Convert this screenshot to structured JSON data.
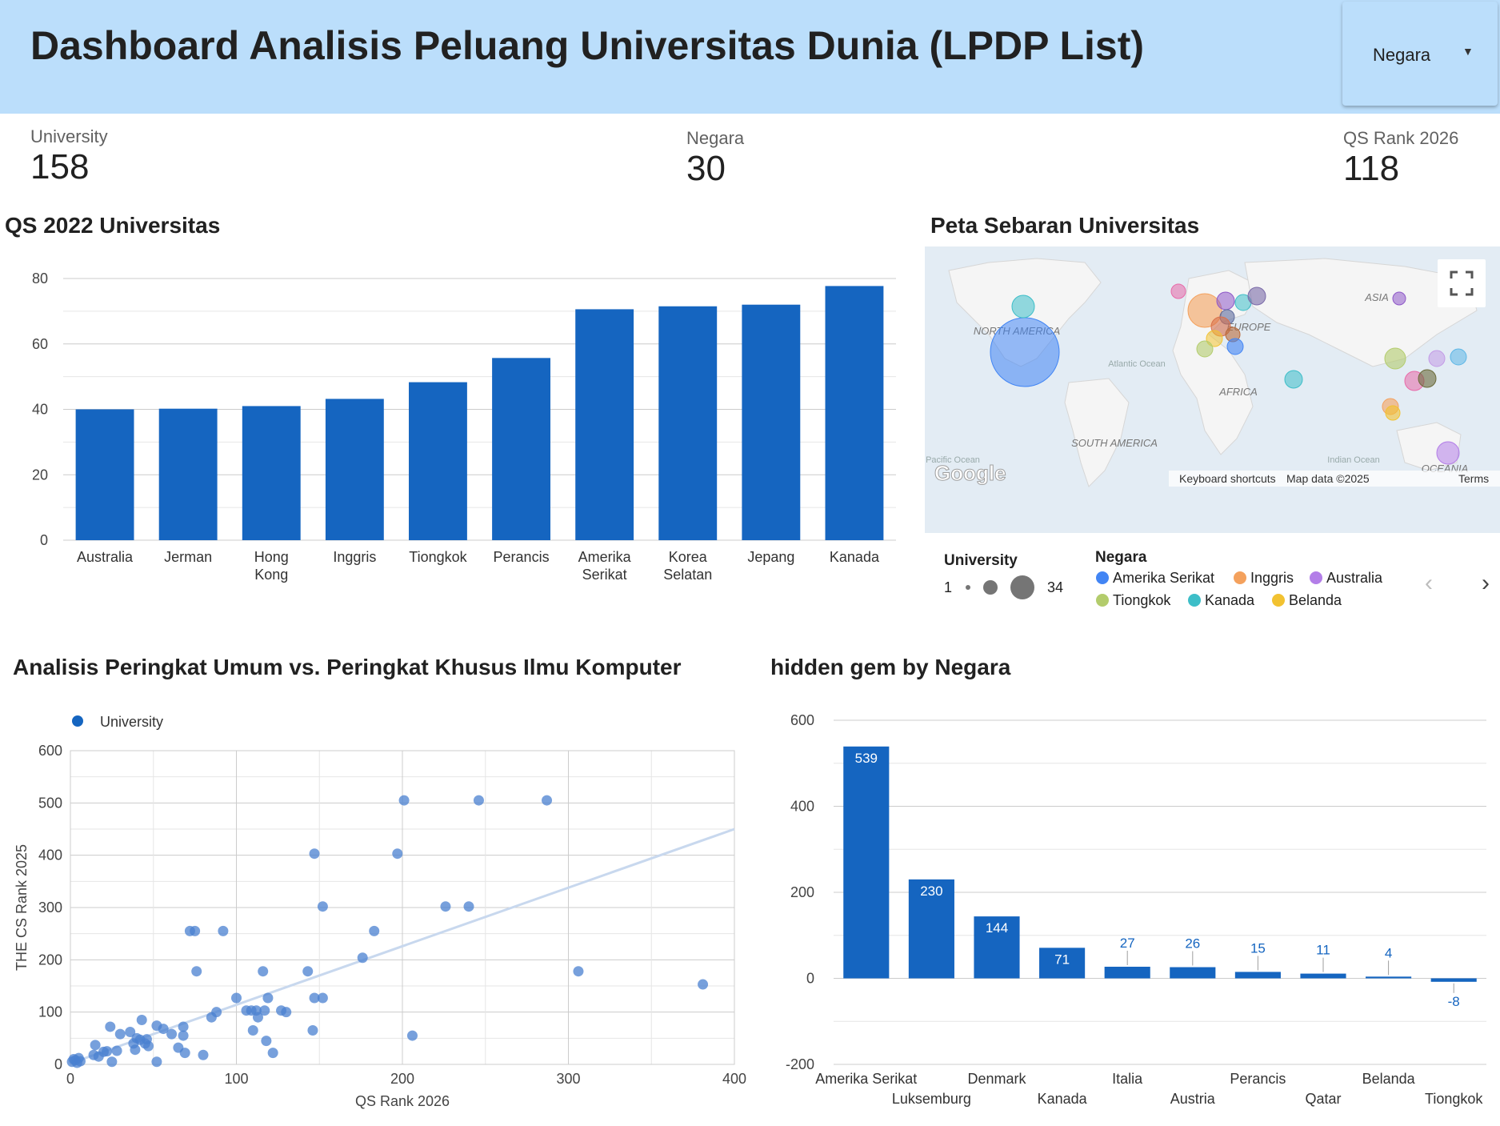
{
  "header": {
    "title": "Dashboard Analisis Peluang Universitas Dunia (LPDP List)"
  },
  "filter": {
    "label": "Negara"
  },
  "kpis": [
    {
      "label": "University",
      "value": "158"
    },
    {
      "label": "Negara",
      "value": "30"
    },
    {
      "label": "QS Rank 2026",
      "value": "118"
    }
  ],
  "bar_title": "QS 2022 Universitas",
  "map_title": "Peta Sebaran Universitas",
  "scatter_title": "Analisis Peringkat Umum vs. Peringkat Khusus Ilmu Komputer",
  "gem_title": "hidden gem by Negara",
  "map": {
    "continents": [
      "NORTH AMERICA",
      "EUROPE",
      "ASIA",
      "AFRICA",
      "SOUTH AMERICA",
      "OCEANIA"
    ],
    "oceans": [
      "Atlantic Ocean",
      "Pacific Ocean",
      "Indian Ocean"
    ],
    "logo": "Google",
    "attrib": [
      "Keyboard shortcuts",
      "Map data ©2025",
      "Terms"
    ],
    "legend_size_title": "University",
    "legend_size_min": "1",
    "legend_size_max": "34",
    "legend_color_title": "Negara",
    "legend_items": [
      {
        "name": "Amerika Serikat",
        "color": "#4285f4"
      },
      {
        "name": "Inggris",
        "color": "#f4a15d"
      },
      {
        "name": "Australia",
        "color": "#b37ee8"
      },
      {
        "name": "Tiongkok",
        "color": "#b3cc6c"
      },
      {
        "name": "Kanada",
        "color": "#3dbec8"
      },
      {
        "name": "Belanda",
        "color": "#f2c231"
      }
    ]
  },
  "chart_data": [
    {
      "type": "bar",
      "title": "QS 2022 Universitas",
      "categories": [
        "Australia",
        "Jerman",
        "Hong Kong",
        "Inggris",
        "Tiongkok",
        "Perancis",
        "Amerika Serikat",
        "Korea Selatan",
        "Jepang",
        "Kanada"
      ],
      "values": [
        40,
        40.2,
        41,
        43.2,
        48.3,
        55.7,
        70.6,
        71.5,
        72,
        77.7
      ],
      "ylim": [
        0,
        80
      ],
      "yticks": [
        0,
        20,
        40,
        60,
        80
      ],
      "color": "#1565c0"
    },
    {
      "type": "scatter",
      "series": [
        {
          "name": "University",
          "color": "#1565c0"
        }
      ],
      "xlabel": "QS Rank 2026",
      "ylabel": "THE CS Rank 2025",
      "xlim": [
        0,
        400
      ],
      "ylim": [
        0,
        600
      ],
      "xticks": [
        0,
        100,
        200,
        300,
        400
      ],
      "yticks": [
        0,
        100,
        200,
        300,
        400,
        500,
        600
      ],
      "points": [
        [
          1,
          5
        ],
        [
          2,
          10
        ],
        [
          3,
          8
        ],
        [
          4,
          3
        ],
        [
          5,
          12
        ],
        [
          6,
          6
        ],
        [
          14,
          18
        ],
        [
          15,
          37
        ],
        [
          17,
          15
        ],
        [
          20,
          24
        ],
        [
          22,
          25
        ],
        [
          24,
          72
        ],
        [
          25,
          5
        ],
        [
          28,
          26
        ],
        [
          30,
          58
        ],
        [
          36,
          62
        ],
        [
          38,
          40
        ],
        [
          39,
          28
        ],
        [
          40,
          50
        ],
        [
          42,
          47
        ],
        [
          43,
          85
        ],
        [
          45,
          40
        ],
        [
          46,
          48
        ],
        [
          47,
          35
        ],
        [
          52,
          5
        ],
        [
          52,
          74
        ],
        [
          56,
          68
        ],
        [
          61,
          58
        ],
        [
          65,
          32
        ],
        [
          68,
          72
        ],
        [
          68,
          55
        ],
        [
          69,
          22
        ],
        [
          72,
          255
        ],
        [
          75,
          255
        ],
        [
          76,
          178
        ],
        [
          80,
          18
        ],
        [
          85,
          90
        ],
        [
          88,
          100
        ],
        [
          92,
          255
        ],
        [
          100,
          127
        ],
        [
          106,
          103
        ],
        [
          109,
          103
        ],
        [
          110,
          65
        ],
        [
          112,
          103
        ],
        [
          113,
          90
        ],
        [
          116,
          178
        ],
        [
          117,
          103
        ],
        [
          118,
          45
        ],
        [
          119,
          127
        ],
        [
          122,
          22
        ],
        [
          127,
          103
        ],
        [
          130,
          100
        ],
        [
          143,
          178
        ],
        [
          146,
          65
        ],
        [
          147,
          127
        ],
        [
          147,
          403
        ],
        [
          152,
          302
        ],
        [
          152,
          127
        ],
        [
          176,
          204
        ],
        [
          183,
          255
        ],
        [
          197,
          403
        ],
        [
          201,
          505
        ],
        [
          206,
          55
        ],
        [
          226,
          302
        ],
        [
          240,
          302
        ],
        [
          246,
          505
        ],
        [
          287,
          505
        ],
        [
          306,
          178
        ],
        [
          381,
          153
        ]
      ],
      "trendline": [
        [
          0,
          2
        ],
        [
          400,
          450
        ]
      ]
    },
    {
      "type": "bar",
      "title": "hidden gem by Negara",
      "categories": [
        "Amerika Serikat",
        "Luksemburg",
        "Denmark",
        "Kanada",
        "Italia",
        "Austria",
        "Perancis",
        "Qatar",
        "Belanda",
        "Tiongkok"
      ],
      "values": [
        539,
        230,
        144,
        71,
        27,
        26,
        15,
        11,
        4,
        -8
      ],
      "ylim": [
        -200,
        600
      ],
      "yticks": [
        -200,
        0,
        200,
        400,
        600
      ],
      "color": "#1565c0"
    }
  ]
}
